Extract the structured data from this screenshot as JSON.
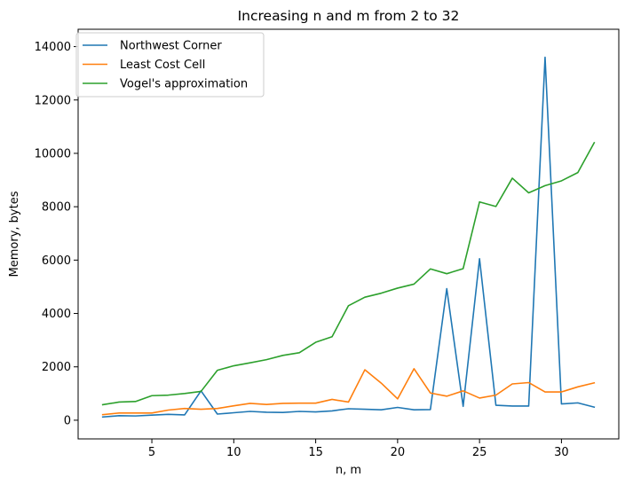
{
  "chart_data": {
    "type": "line",
    "title": "Increasing n and m from 2 to 32",
    "xlabel": "n, m",
    "ylabel": "Memory, bytes",
    "xlim": [
      0.5,
      33.5
    ],
    "ylim": [
      -700,
      14650
    ],
    "x_ticks": [
      5,
      10,
      15,
      20,
      25,
      30
    ],
    "y_ticks": [
      0,
      2000,
      4000,
      6000,
      8000,
      10000,
      12000,
      14000
    ],
    "grid": false,
    "legend_position": "upper left",
    "x": [
      2,
      3,
      4,
      5,
      6,
      7,
      8,
      9,
      10,
      11,
      12,
      13,
      14,
      15,
      16,
      17,
      18,
      19,
      20,
      21,
      22,
      23,
      24,
      25,
      26,
      27,
      28,
      29,
      30,
      31,
      32
    ],
    "series": [
      {
        "name": "Northwest Corner",
        "color": "#1f77b4",
        "values": [
          120,
          170,
          160,
          190,
          220,
          200,
          1100,
          230,
          280,
          330,
          300,
          290,
          330,
          310,
          350,
          430,
          410,
          390,
          480,
          390,
          400,
          4930,
          520,
          6050,
          560,
          530,
          530,
          13600,
          610,
          650,
          490
        ]
      },
      {
        "name": "Least Cost Cell",
        "color": "#ff7f0e",
        "values": [
          210,
          270,
          270,
          270,
          380,
          440,
          410,
          440,
          540,
          630,
          590,
          630,
          640,
          640,
          780,
          680,
          1890,
          1390,
          800,
          1930,
          1020,
          900,
          1100,
          830,
          940,
          1360,
          1410,
          1060,
          1060,
          1250,
          1400
        ]
      },
      {
        "name": "Vogel's approximation",
        "color": "#2ca02c",
        "values": [
          580,
          680,
          700,
          920,
          940,
          1000,
          1080,
          1870,
          2040,
          2150,
          2270,
          2430,
          2530,
          2920,
          3130,
          4290,
          4610,
          4760,
          4950,
          5100,
          5670,
          5490,
          5680,
          8180,
          8010,
          9070,
          8520,
          8790,
          8970,
          9280,
          10400
        ]
      }
    ]
  }
}
